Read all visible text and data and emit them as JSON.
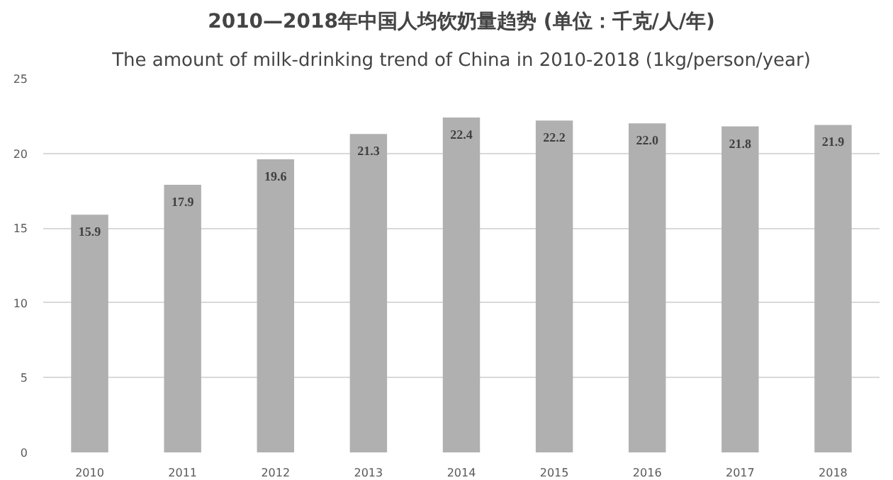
{
  "chart_data": {
    "type": "bar",
    "title": "2010—2018年中国人均饮奶量趋势 (单位：千克/人/年)",
    "subtitle": "The amount of milk-drinking trend of China in 2010-2018 (1kg/person/year)",
    "categories": [
      "2010",
      "2011",
      "2012",
      "2013",
      "2014",
      "2015",
      "2016",
      "2017",
      "2018"
    ],
    "values": [
      15.9,
      17.9,
      19.6,
      21.3,
      22.4,
      22.2,
      22.0,
      21.8,
      21.9
    ],
    "value_labels": [
      "15.9",
      "17.9",
      "19.6",
      "21.3",
      "22.4",
      "22.2",
      "22.0",
      "21.8",
      "21.9"
    ],
    "color": "#b0b0b0",
    "ylim": [
      0,
      25
    ],
    "yticks": [
      0,
      5,
      10,
      15,
      20,
      25
    ],
    "grid": "y"
  }
}
